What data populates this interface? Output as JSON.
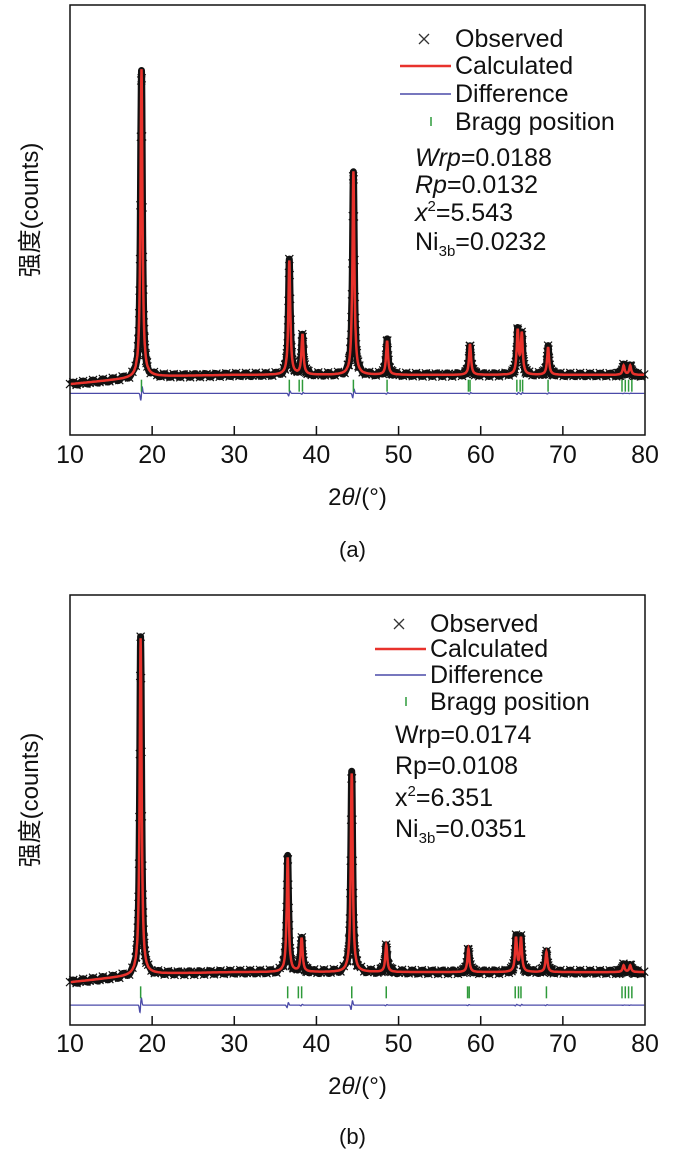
{
  "chart_data": [
    {
      "type": "line",
      "panel_label": "(a)",
      "xlabel_prefix": "2",
      "xlabel_theta": "θ",
      "xlabel_suffix": "/(°)",
      "ylabel": "强度(counts)",
      "xlim": [
        10,
        80
      ],
      "ylim": [
        -19.5,
        120
      ],
      "xticks": [
        "10",
        "20",
        "30",
        "40",
        "50",
        "60",
        "70",
        "80"
      ],
      "legend": {
        "observed": "Observed",
        "calculated": "Calculated",
        "difference": "Difference",
        "bragg": "Bragg position"
      },
      "legend_placement": "top-right",
      "stats": [
        {
          "name": "Wrp",
          "italic": true,
          "sup": "",
          "sub": "",
          "value": "=0.0188"
        },
        {
          "name": "Rp",
          "italic": true,
          "sup": "",
          "sub": "",
          "value": "=0.0132"
        },
        {
          "name": "x",
          "italic": true,
          "sup": "2",
          "sub": "",
          "value": "=5.543"
        },
        {
          "name": "Ni",
          "italic": false,
          "sup": "",
          "sub": "3b",
          "value": "=0.0232"
        }
      ],
      "background": [
        [
          10,
          -3
        ],
        [
          20,
          -0.5
        ],
        [
          30,
          0
        ],
        [
          80,
          0
        ]
      ],
      "peaks": [
        [
          18.7,
          100
        ],
        [
          36.7,
          37
        ],
        [
          38.3,
          13
        ],
        [
          44.5,
          66
        ],
        [
          48.6,
          11
        ],
        [
          58.7,
          10
        ],
        [
          64.5,
          14
        ],
        [
          65.0,
          13
        ],
        [
          68.2,
          9
        ],
        [
          77.4,
          3
        ],
        [
          78.2,
          3
        ]
      ],
      "bragg_positions": [
        18.7,
        36.7,
        37.9,
        38.3,
        44.5,
        48.6,
        58.5,
        58.7,
        64.4,
        64.8,
        65.1,
        68.2,
        77.2,
        77.6,
        78.0,
        78.4
      ],
      "difference_offset": -6,
      "bragg_offset": -3.5,
      "colors": {
        "observed": "#111111",
        "calculated": "#e8322c",
        "difference": "#4a4aa8",
        "bragg": "#2e9a3a"
      }
    },
    {
      "type": "line",
      "panel_label": "(b)",
      "xlabel_prefix": "2",
      "xlabel_theta": "θ",
      "xlabel_suffix": "/(°)",
      "ylabel": "强度(counts)",
      "xlim": [
        10,
        80
      ],
      "ylim": [
        -15.7,
        112
      ],
      "xticks": [
        "10",
        "20",
        "30",
        "40",
        "50",
        "60",
        "70",
        "80"
      ],
      "legend": {
        "observed": "Observed",
        "calculated": "Calculated",
        "difference": "Difference",
        "bragg": "Bragg position"
      },
      "legend_placement": "top-right",
      "stats": [
        {
          "name": "Wrp",
          "italic": false,
          "sup": "",
          "sub": "",
          "value": "=0.0174"
        },
        {
          "name": "Rp",
          "italic": false,
          "sup": "",
          "sub": "",
          "value": "=0.0108"
        },
        {
          "name": "x",
          "italic": false,
          "sup": "2",
          "sub": "",
          "value": "=6.351"
        },
        {
          "name": "Ni",
          "italic": false,
          "sup": "",
          "sub": "3b",
          "value": "=0.0351"
        }
      ],
      "background": [
        [
          10,
          -3
        ],
        [
          20,
          -0.5
        ],
        [
          30,
          0
        ],
        [
          80,
          0
        ]
      ],
      "peaks": [
        [
          18.6,
          100
        ],
        [
          36.5,
          34
        ],
        [
          38.2,
          10
        ],
        [
          44.3,
          59
        ],
        [
          48.5,
          8
        ],
        [
          58.5,
          7
        ],
        [
          64.3,
          10
        ],
        [
          64.9,
          10
        ],
        [
          68.0,
          6
        ],
        [
          77.4,
          2
        ],
        [
          78.2,
          2
        ]
      ],
      "bragg_positions": [
        18.6,
        36.5,
        37.8,
        38.2,
        44.3,
        48.5,
        58.4,
        58.6,
        64.2,
        64.6,
        64.9,
        68.0,
        77.2,
        77.6,
        78.0,
        78.4
      ],
      "difference_offset": -9.8,
      "bragg_offset": -6,
      "colors": {
        "observed": "#111111",
        "calculated": "#e8322c",
        "difference": "#4a4aa8",
        "bragg": "#2e9a3a"
      }
    }
  ]
}
